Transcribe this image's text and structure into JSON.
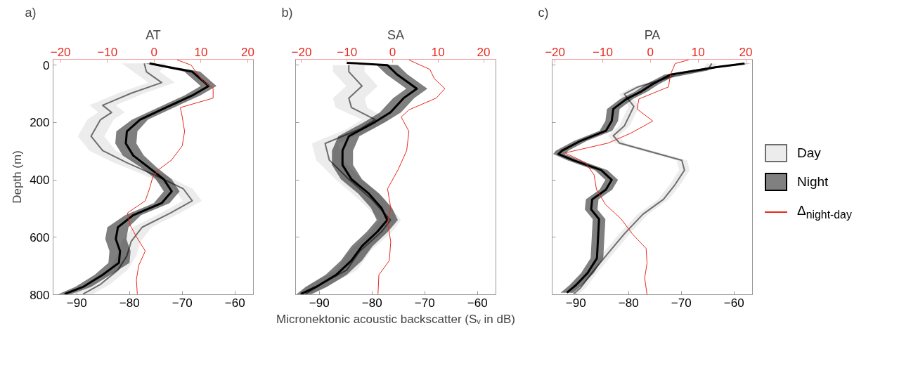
{
  "chart_data": [
    {
      "type": "line",
      "orientation": "horizontal",
      "title": "AT",
      "annotations": [
        "a)"
      ],
      "ylabel": "Depth (m)",
      "legend": false,
      "xlim": [
        -94.5,
        -56.5
      ],
      "xticks": [
        -90,
        -80,
        -70,
        -60
      ],
      "x2lim": [
        -21.6,
        21.2
      ],
      "x2ticks": [
        -20,
        -10,
        0,
        10,
        20
      ],
      "ylim": [
        800,
        -20
      ],
      "yticks": [
        0,
        200,
        400,
        600,
        800
      ],
      "series": [
        {
          "color": "#6e6e6e",
          "x": [
            -6,
            23,
            61,
            98,
            140,
            165,
            190,
            248,
            298,
            340,
            381,
            431,
            473,
            515,
            565,
            615,
            665,
            714,
            764,
            798
          ],
          "values": [
            -77.2,
            -76.8,
            -73.9,
            -79.7,
            -85.1,
            -83.4,
            -85.5,
            -87.3,
            -85.1,
            -80.5,
            -75.5,
            -69.8,
            -68.1,
            -72.2,
            -77.6,
            -79.7,
            -80.5,
            -82.2,
            -85.5,
            -88.8
          ],
          "lower": [
            -81.5,
            -79.3,
            -76.4,
            -82.2,
            -87.6,
            -85.9,
            -88.0,
            -89.8,
            -87.6,
            -83.0,
            -77.5,
            -71.6,
            -69.9,
            -74.0,
            -79.4,
            -81.5,
            -82.3,
            -84.0,
            -87.3,
            -90.6
          ],
          "upper": [
            -73.0,
            -74.3,
            -71.4,
            -77.2,
            -82.6,
            -80.9,
            -83.0,
            -84.8,
            -82.6,
            -78.0,
            -73.5,
            -68.0,
            -66.3,
            -70.4,
            -75.8,
            -77.9,
            -78.7,
            -80.4,
            -83.7,
            -87.0
          ]
        },
        {
          "color": "#000000",
          "x": [
            -6,
            23,
            73,
            106,
            148,
            190,
            231,
            273,
            315,
            356,
            398,
            440,
            481,
            523,
            565,
            606,
            648,
            689,
            731,
            773,
            798
          ],
          "values": [
            -76.2,
            -68.1,
            -65.0,
            -68.1,
            -73.1,
            -78.0,
            -80.5,
            -80.7,
            -79.3,
            -76.4,
            -73.5,
            -72.0,
            -73.9,
            -79.3,
            -82.2,
            -82.6,
            -81.8,
            -82.0,
            -85.1,
            -88.8,
            -92.3
          ],
          "lower": [
            -77.0,
            -69.6,
            -66.5,
            -69.6,
            -74.6,
            -79.5,
            -82.5,
            -82.7,
            -81.3,
            -77.9,
            -75.0,
            -73.5,
            -75.4,
            -80.8,
            -84.2,
            -84.6,
            -83.8,
            -84.0,
            -86.6,
            -90.3,
            -93.5
          ],
          "upper": [
            -75.5,
            -66.6,
            -63.5,
            -66.6,
            -71.6,
            -76.5,
            -78.5,
            -78.7,
            -77.3,
            -74.9,
            -72.0,
            -70.5,
            -72.4,
            -77.8,
            -80.2,
            -80.6,
            -79.8,
            -80.0,
            -83.6,
            -87.3,
            -91.0
          ]
        },
        {
          "color": "#e8281e",
          "axis": "x2",
          "x": [
            -18,
            0,
            32,
            57,
            82,
            115,
            148,
            181,
            231,
            281,
            331,
            365,
            390,
            431,
            473,
            515,
            556,
            598,
            648,
            698,
            748,
            798
          ],
          "values": [
            4.9,
            7.9,
            9.3,
            10.5,
            12.6,
            12.6,
            5.6,
            6.0,
            6.5,
            6.0,
            3.7,
            0.9,
            -0.3,
            -1.0,
            -1.9,
            -5.7,
            -5.2,
            -3.8,
            -1.9,
            -3.3,
            -3.8,
            -3.6
          ]
        }
      ]
    },
    {
      "type": "line",
      "orientation": "horizontal",
      "title": "SA",
      "annotations": [
        "b)"
      ],
      "xlabel": "Micronektonic acoustic backscatter (Sᵥ in dB)",
      "legend": false,
      "tick_labels": "x",
      "xlim": [
        -94.5,
        -56.5
      ],
      "xticks": [
        -90,
        -80,
        -70,
        -60
      ],
      "x2lim": [
        -21.3,
        22.7
      ],
      "x2ticks": [
        -20,
        -10,
        0,
        10,
        20
      ],
      "ylim": [
        800,
        -20
      ],
      "yticks": [
        0,
        200,
        400,
        600,
        800
      ],
      "series": [
        {
          "color": "#6e6e6e",
          "x": [
            0,
            23,
            73,
            115,
            148,
            190,
            223,
            273,
            331,
            398,
            465,
            540,
            581,
            648,
            714,
            764,
            798
          ],
          "values": [
            -84.4,
            -84.4,
            -81.9,
            -84.4,
            -83.9,
            -79.4,
            -82.3,
            -88.9,
            -88.1,
            -84.4,
            -80.2,
            -76.5,
            -78.2,
            -82.3,
            -84.8,
            -89.7,
            -92.6
          ],
          "lower": [
            -87.4,
            -87.4,
            -84.9,
            -87.4,
            -86.9,
            -81.9,
            -84.8,
            -91.4,
            -90.6,
            -86.9,
            -82.7,
            -78.5,
            -80.2,
            -84.3,
            -86.8,
            -91.7,
            -94.1
          ],
          "upper": [
            -81.4,
            -81.4,
            -78.9,
            -81.4,
            -80.9,
            -76.9,
            -79.8,
            -86.4,
            -85.6,
            -81.9,
            -77.7,
            -74.5,
            -76.2,
            -80.3,
            -82.8,
            -87.7,
            -91.1
          ]
        },
        {
          "color": "#000000",
          "x": [
            -8,
            0,
            32,
            82,
            115,
            165,
            198,
            248,
            298,
            348,
            398,
            448,
            498,
            540,
            581,
            631,
            681,
            731,
            773,
            798
          ],
          "values": [
            -84.8,
            -77.1,
            -75.3,
            -71.5,
            -74.0,
            -76.5,
            -79.4,
            -84.4,
            -85.6,
            -85.6,
            -83.9,
            -80.6,
            -78.2,
            -77.1,
            -79.0,
            -81.9,
            -83.9,
            -86.8,
            -90.6,
            -93.5
          ],
          "lower": [
            -85.3,
            -79.1,
            -77.3,
            -73.5,
            -76.0,
            -78.5,
            -81.4,
            -86.4,
            -87.6,
            -87.6,
            -85.9,
            -82.6,
            -80.2,
            -79.1,
            -81.0,
            -83.9,
            -85.9,
            -88.8,
            -92.6,
            -94.3
          ],
          "upper": [
            -84.3,
            -75.1,
            -73.3,
            -69.5,
            -72.0,
            -74.5,
            -77.4,
            -82.4,
            -83.6,
            -83.6,
            -81.9,
            -78.6,
            -76.2,
            -75.1,
            -77.0,
            -79.9,
            -81.9,
            -84.8,
            -88.6,
            -91.5
          ]
        },
        {
          "color": "#e8281e",
          "axis": "x2",
          "x": [
            -18,
            15,
            48,
            82,
            115,
            156,
            181,
            231,
            298,
            365,
            431,
            498,
            548,
            615,
            681,
            731,
            798
          ],
          "values": [
            3.6,
            8.2,
            9.2,
            11.5,
            9.6,
            3.6,
            1.9,
            3.6,
            3.1,
            1.2,
            -1.1,
            -0.4,
            -1.1,
            -0.4,
            -0.7,
            -3.0,
            -3.2
          ]
        }
      ]
    },
    {
      "type": "line",
      "orientation": "horizontal",
      "title": "PA",
      "annotations": [
        "c)"
      ],
      "legend": "right",
      "tick_labels": "x",
      "xlim": [
        -94.5,
        -56.5
      ],
      "xticks": [
        -90,
        -80,
        -70,
        -60
      ],
      "x2lim": [
        -20.6,
        21.4
      ],
      "x2ticks": [
        -20,
        -10,
        0,
        10,
        20
      ],
      "ylim": [
        800,
        -20
      ],
      "yticks": [
        0,
        200,
        400,
        600,
        800
      ],
      "series": [
        {
          "name": "Day",
          "color": "#6e6e6e",
          "x": [
            -5.5,
            16,
            41,
            76,
            101,
            144,
            178,
            212,
            246,
            272,
            332,
            366,
            417,
            468,
            520,
            588,
            656,
            725,
            776,
            797
          ],
          "values": [
            -64.2,
            -65.0,
            -72.0,
            -78.2,
            -80.8,
            -79.0,
            -79.9,
            -80.8,
            -82.9,
            -81.7,
            -69.9,
            -69.4,
            -71.2,
            -73.4,
            -77.3,
            -80.8,
            -83.9,
            -87.0,
            -89.1,
            -90.4
          ],
          "lower": [
            -65.2,
            -66.0,
            -73.0,
            -79.2,
            -81.8,
            -80.0,
            -80.9,
            -81.8,
            -83.9,
            -82.7,
            -70.9,
            -70.4,
            -72.2,
            -74.4,
            -78.3,
            -81.8,
            -84.9,
            -88.0,
            -90.1,
            -91.4
          ],
          "upper": [
            -63.2,
            -64.0,
            -71.0,
            -77.2,
            -79.8,
            -78.0,
            -78.9,
            -79.8,
            -81.9,
            -80.7,
            -68.9,
            -68.4,
            -70.2,
            -72.4,
            -76.3,
            -79.8,
            -82.9,
            -86.0,
            -88.1,
            -89.4
          ]
        },
        {
          "name": "Night",
          "color": "#000000",
          "x": [
            -5.5,
            7,
            33,
            67,
            93,
            118,
            153,
            195,
            229,
            264,
            298,
            310,
            332,
            366,
            400,
            434,
            468,
            503,
            537,
            605,
            673,
            725,
            767,
            793
          ],
          "values": [
            -58.0,
            -63.3,
            -72.0,
            -75.5,
            -77.7,
            -80.4,
            -82.9,
            -83.2,
            -84.3,
            -89.1,
            -92.6,
            -93.3,
            -90.4,
            -85.2,
            -83.2,
            -84.3,
            -86.9,
            -87.1,
            -85.6,
            -85.8,
            -86.0,
            -87.8,
            -90.0,
            -91.7
          ],
          "lower": [
            -59.2,
            -64.5,
            -73.2,
            -76.7,
            -78.9,
            -81.6,
            -84.1,
            -84.4,
            -85.5,
            -90.3,
            -93.8,
            -94.3,
            -91.6,
            -86.4,
            -84.4,
            -85.5,
            -88.1,
            -88.3,
            -86.8,
            -87.0,
            -87.2,
            -89.0,
            -91.2,
            -92.9
          ],
          "upper": [
            -56.8,
            -62.1,
            -70.8,
            -74.3,
            -76.5,
            -79.2,
            -81.7,
            -82.0,
            -83.1,
            -87.9,
            -91.4,
            -92.1,
            -89.2,
            -84.0,
            -82.0,
            -83.1,
            -85.7,
            -85.9,
            -84.4,
            -84.6,
            -84.8,
            -86.6,
            -88.8,
            -90.5
          ]
        },
        {
          "name": "Δ$_{night-day}$",
          "color": "#e8281e",
          "axis": "x2",
          "x": [
            -18,
            -5.5,
            33,
            76,
            118,
            153,
            195,
            238,
            272,
            306,
            340,
            383,
            434,
            486,
            537,
            588,
            639,
            690,
            742,
            800
          ],
          "values": [
            8.0,
            5.2,
            4.2,
            3.8,
            -2.4,
            -2.8,
            0.5,
            -4.2,
            -8.9,
            -17.9,
            -13.6,
            -11.8,
            -11.3,
            -9.4,
            -6.1,
            -3.8,
            -0.9,
            -0.7,
            -1.2,
            -0.7
          ]
        }
      ]
    }
  ]
}
